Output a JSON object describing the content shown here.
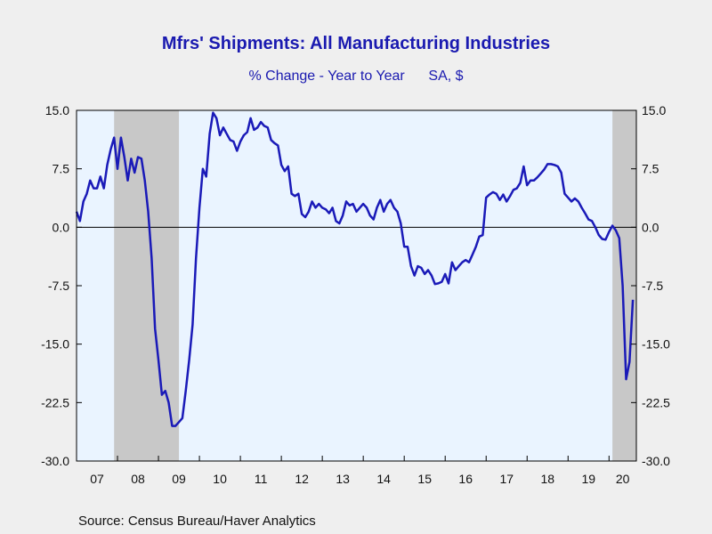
{
  "chart_data": {
    "type": "line",
    "title": "Mfrs' Shipments: All Manufacturing Industries",
    "subtitle": "% Change - Year to Year",
    "subtitle_unit": "SA, $",
    "source": "Source:  Census Bureau/Haver Analytics",
    "ylim": [
      -30.0,
      15.0
    ],
    "y_ticks": [
      "15.0",
      "7.5",
      "0.0",
      "-7.5",
      "-15.0",
      "-22.5",
      "-30.0"
    ],
    "y_tick_values": [
      15.0,
      7.5,
      0.0,
      -7.5,
      -15.0,
      -22.5,
      -30.0
    ],
    "x_tick_labels": [
      "07",
      "08",
      "09",
      "10",
      "11",
      "12",
      "13",
      "14",
      "15",
      "16",
      "17",
      "18",
      "19",
      "20"
    ],
    "xlim": [
      2007.0,
      2020.667
    ],
    "grid": false,
    "zero_line": true,
    "plot_background": "#eaf4ff",
    "line_color": "#1a1ab8",
    "recession_color": "#c8c8c8",
    "recessions": [
      [
        2007.917,
        2009.5
      ],
      [
        2020.083,
        2020.667
      ]
    ],
    "series": [
      {
        "start": 2007.0,
        "step": 0.08333,
        "values": [
          2.0,
          0.8,
          3.3,
          4.3,
          6.0,
          5.0,
          5.0,
          6.5,
          5.0,
          8.0,
          10.0,
          11.5,
          7.5,
          11.5,
          9.0,
          6.0,
          8.8,
          7.0,
          9.0,
          8.8,
          6.0,
          2.0,
          -4.0,
          -13.0,
          -17.0,
          -21.5,
          -21.0,
          -22.5,
          -25.5,
          -25.5,
          -25.0,
          -24.5,
          -21.0,
          -17.0,
          -12.5,
          -4.0,
          2.5,
          7.5,
          6.5,
          12.0,
          14.7,
          14.0,
          11.8,
          12.8,
          12.0,
          11.2,
          11.0,
          9.8,
          11.0,
          11.8,
          12.2,
          14.0,
          12.5,
          12.8,
          13.5,
          13.0,
          12.8,
          11.2,
          10.8,
          10.5,
          8.0,
          7.2,
          7.8,
          4.3,
          4.0,
          4.3,
          1.7,
          1.3,
          2.0,
          3.3,
          2.5,
          3.0,
          2.5,
          2.3,
          1.8,
          2.5,
          0.8,
          0.5,
          1.5,
          3.3,
          2.8,
          3.0,
          2.0,
          2.5,
          3.0,
          2.5,
          1.5,
          1.0,
          2.5,
          3.5,
          2.0,
          3.0,
          3.5,
          2.5,
          2.0,
          0.5,
          -2.5,
          -2.5,
          -5.0,
          -6.2,
          -5.0,
          -5.2,
          -6.0,
          -5.5,
          -6.2,
          -7.3,
          -7.2,
          -7.0,
          -6.0,
          -7.2,
          -4.5,
          -5.5,
          -5.0,
          -4.5,
          -4.2,
          -4.5,
          -3.5,
          -2.5,
          -1.2,
          -1.0,
          3.8,
          4.2,
          4.5,
          4.3,
          3.5,
          4.2,
          3.3,
          4.0,
          4.8,
          5.0,
          5.7,
          7.8,
          5.4,
          6.0,
          6.0,
          6.4,
          6.9,
          7.4,
          8.1,
          8.1,
          8.0,
          7.8,
          7.0,
          4.3,
          3.8,
          3.3,
          3.7,
          3.3,
          2.5,
          1.8,
          1.0,
          0.8,
          0.0,
          -1.0,
          -1.5,
          -1.6,
          -0.6,
          0.2,
          -0.4,
          -1.4,
          -7.5,
          -19.5,
          -17.3,
          -9.3
        ]
      }
    ]
  }
}
